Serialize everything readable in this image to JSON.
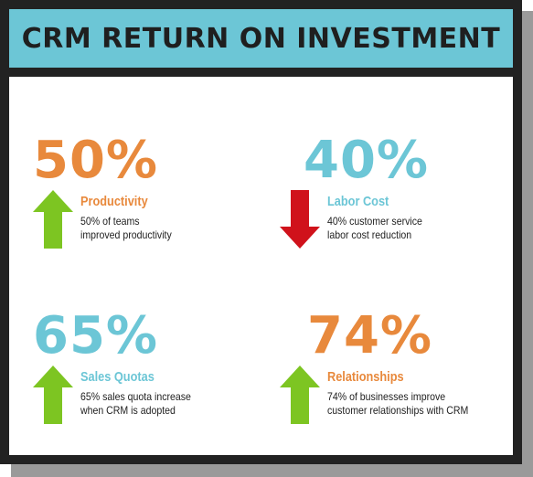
{
  "title": "CRM RETURN ON INVESTMENT",
  "colors": {
    "orange": "#e8893c",
    "teal": "#6cc6d6",
    "green_arrow": "#7dc522",
    "red_arrow": "#d0121b"
  },
  "stats": [
    {
      "value": "50%",
      "label": "Productivity",
      "desc_line1": "50% of teams",
      "desc_line2": "improved productivity",
      "direction": "up",
      "value_color": "#e8893c",
      "label_color": "#e8893c",
      "arrow_icon": "arrow-up-icon"
    },
    {
      "value": "40%",
      "label": "Labor Cost",
      "desc_line1": "40% customer service",
      "desc_line2": "labor cost reduction",
      "direction": "down",
      "value_color": "#6cc6d6",
      "label_color": "#6cc6d6",
      "arrow_icon": "arrow-down-icon"
    },
    {
      "value": "65%",
      "label": "Sales Quotas",
      "desc_line1": "65% sales quota increase",
      "desc_line2": "when CRM is adopted",
      "direction": "up",
      "value_color": "#6cc6d6",
      "label_color": "#6cc6d6",
      "arrow_icon": "arrow-up-icon"
    },
    {
      "value": "74%",
      "label": "Relationships",
      "desc_line1": "74% of businesses improve",
      "desc_line2": "customer relationships with CRM",
      "direction": "up",
      "value_color": "#e8893c",
      "label_color": "#e8893c",
      "arrow_icon": "arrow-up-icon"
    }
  ]
}
